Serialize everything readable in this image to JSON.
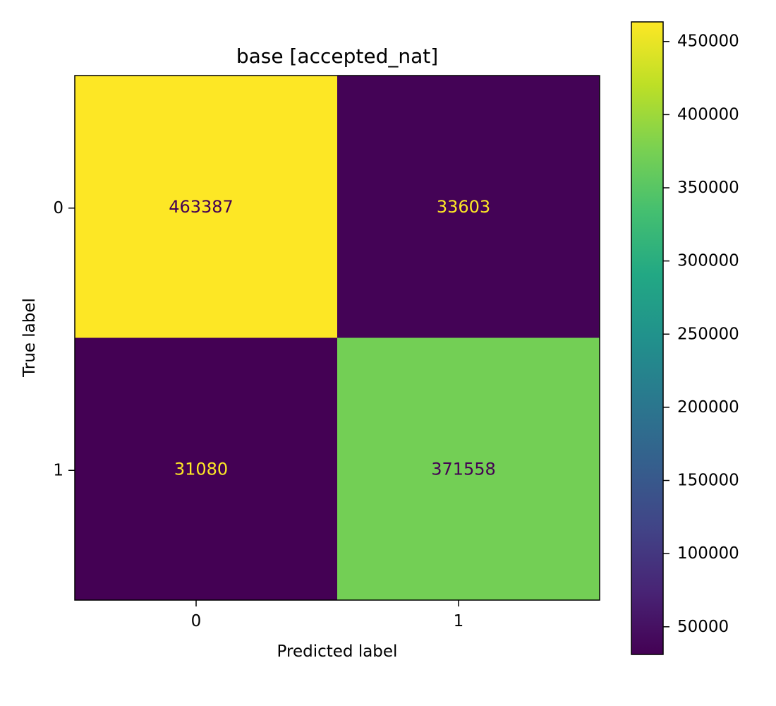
{
  "chart_data": {
    "type": "heatmap",
    "title": "base [accepted_nat]",
    "xlabel": "Predicted label",
    "ylabel": "True label",
    "x_categories": [
      "0",
      "1"
    ],
    "y_categories": [
      "0",
      "1"
    ],
    "matrix": [
      [
        463387,
        33603
      ],
      [
        31080,
        371558
      ]
    ],
    "cell_labels": [
      [
        "463387",
        "33603"
      ],
      [
        "31080",
        "371558"
      ]
    ],
    "colormap": "viridis",
    "colorbar": {
      "vmin": 31080,
      "vmax": 463387,
      "ticks": [
        50000,
        100000,
        150000,
        200000,
        250000,
        300000,
        350000,
        400000,
        450000
      ],
      "tick_labels": [
        "50000",
        "100000",
        "150000",
        "200000",
        "250000",
        "300000",
        "350000",
        "400000",
        "450000"
      ],
      "position": "right"
    },
    "grid": false,
    "text_colors": {
      "on_dark": "#fde725",
      "on_light": "#440154"
    }
  }
}
